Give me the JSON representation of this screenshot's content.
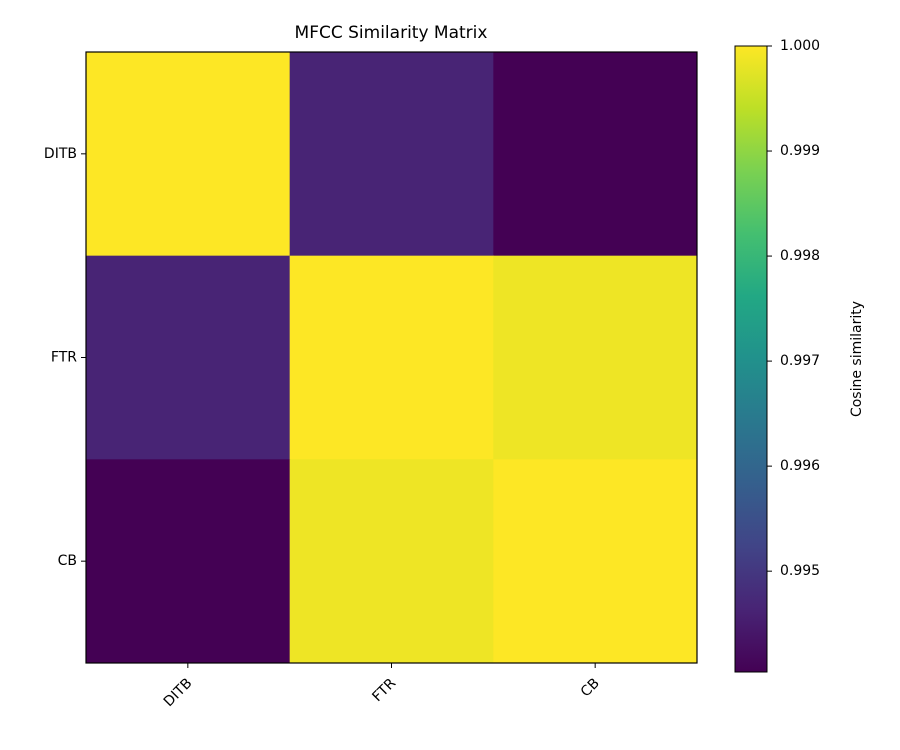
{
  "chart_data": {
    "type": "heatmap",
    "title": "MFCC Similarity Matrix",
    "x_categories": [
      "DITB",
      "FTR",
      "CB"
    ],
    "y_categories": [
      "DITB",
      "FTR",
      "CB"
    ],
    "values": [
      [
        1.0,
        0.99464,
        0.99404
      ],
      [
        0.99464,
        1.0,
        0.99986
      ],
      [
        0.99404,
        0.99986,
        1.0
      ]
    ],
    "colormap": "viridis",
    "zlim": [
      0.99404,
      1.0
    ],
    "colorbar_ticks": [
      0.995,
      0.996,
      0.997,
      0.998,
      0.999,
      {
        "value": 1.0,
        "label": "1.000"
      }
    ],
    "colorbar_label": "Cosine similarity"
  }
}
